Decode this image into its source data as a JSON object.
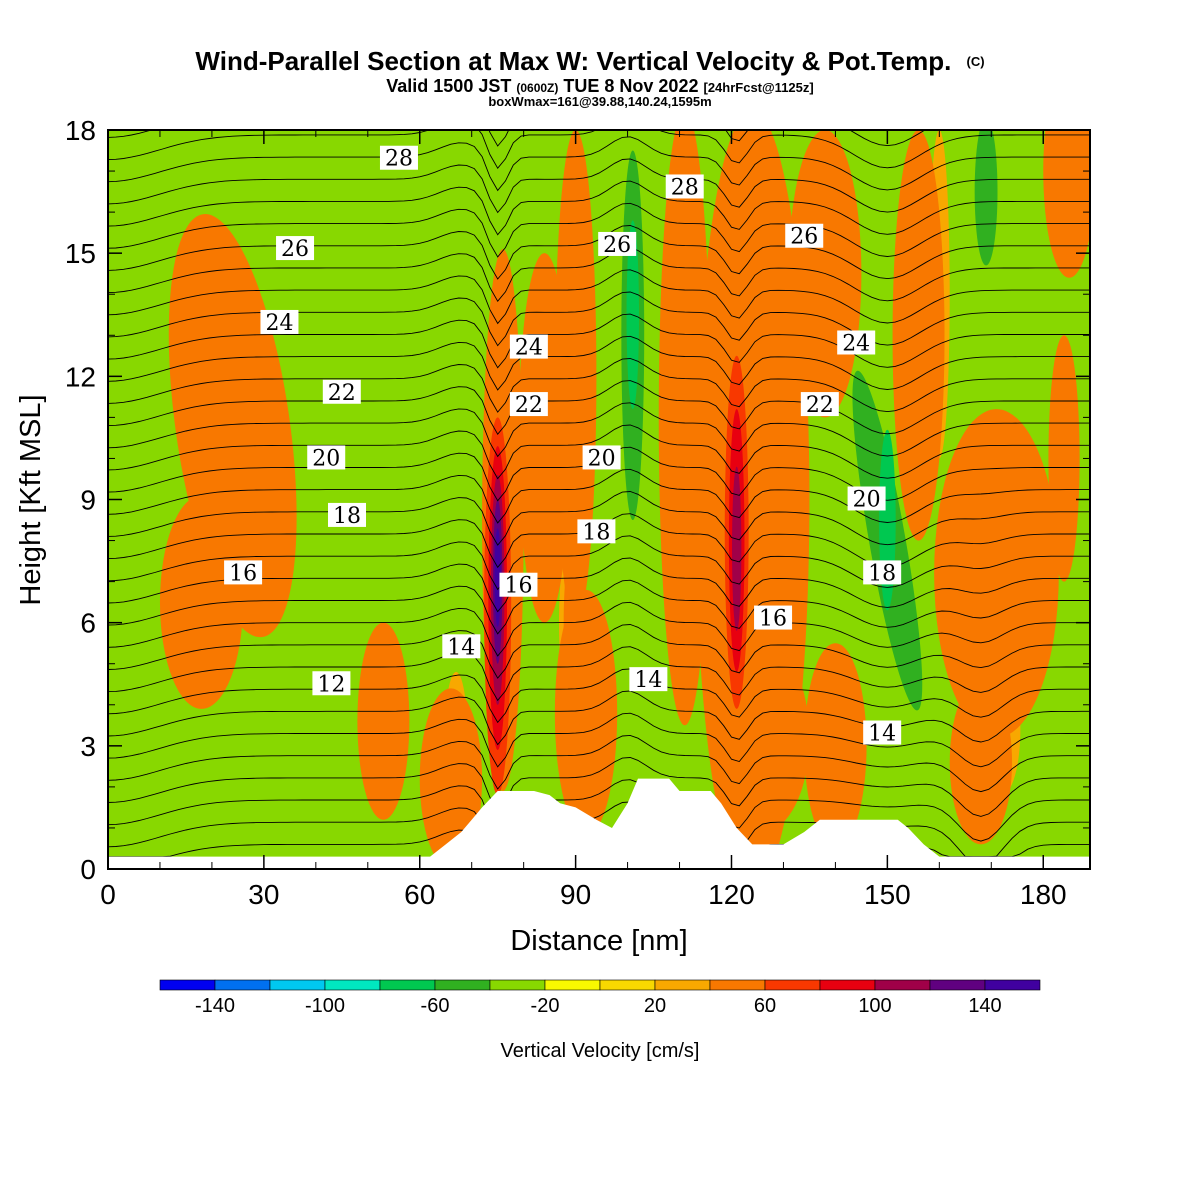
{
  "header": {
    "title_main": "Wind-Parallel Section at Max W: Vertical Velocity & Pot.Temp.",
    "title_mark": "(C)",
    "valid_prefix": "Valid 1500 JST",
    "valid_zulu": "(0600Z)",
    "valid_date": "TUE 8 Nov 2022",
    "forecast": "[24hrFcst@1125z]",
    "boxmax": "boxWmax=161@39.88,140.24,1595m"
  },
  "chart_data": {
    "type": "heatmap",
    "xlabel": "Distance [nm]",
    "ylabel": "Height [Kft MSL]",
    "xlim": [
      0,
      189
    ],
    "ylim": [
      0,
      18
    ],
    "xticks": [
      0,
      30,
      60,
      90,
      120,
      150,
      180
    ],
    "yticks": [
      0,
      3,
      6,
      9,
      12,
      15,
      18
    ],
    "xtick_labels": [
      "0",
      "30",
      "60",
      "90",
      "120",
      "150",
      "180"
    ],
    "ytick_labels": [
      "0",
      "3",
      "6",
      "9",
      "12",
      "15",
      "18"
    ],
    "colorbar": {
      "label": "Vertical Velocity [cm/s]",
      "levels": [
        -160,
        -140,
        -120,
        -100,
        -80,
        -60,
        -40,
        -20,
        0,
        20,
        40,
        60,
        80,
        100,
        120,
        140,
        160
      ],
      "tick_labels": [
        "-140",
        "-100",
        "-60",
        "-20",
        "20",
        "60",
        "100",
        "140"
      ],
      "tick_values": [
        -140,
        -100,
        -60,
        -20,
        20,
        60,
        100,
        140
      ],
      "colors": [
        "#0000f0",
        "#0070f0",
        "#00c8f0",
        "#00e8c0",
        "#00c850",
        "#30b020",
        "#88d800",
        "#f8f800",
        "#f8d800",
        "#f8a800",
        "#f87800",
        "#f83800",
        "#e80010",
        "#a00048",
        "#600080",
        "#4000a0"
      ]
    },
    "vertical_velocity_features": [
      {
        "x": 75,
        "y": 6.8,
        "peak": 150,
        "note": "updraft"
      },
      {
        "x": 121,
        "y": 8,
        "peak": 110,
        "note": "updraft"
      },
      {
        "x": 101,
        "y": 13,
        "peak": -75,
        "note": "downdraft"
      },
      {
        "x": 150,
        "y": 8,
        "peak": -55,
        "note": "downdraft"
      },
      {
        "x": 168,
        "y": 16,
        "peak": -50,
        "note": "downdraft"
      }
    ],
    "theta_contours": [
      {
        "value": 12,
        "label": "12",
        "label_x": 43,
        "label_y": 4.5
      },
      {
        "value": 14,
        "label": "14",
        "label_x": 68,
        "label_y": 5.4
      },
      {
        "value": 14,
        "label": "14",
        "label_x": 104,
        "label_y": 4.6
      },
      {
        "value": 14,
        "label": "14",
        "label_x": 149,
        "label_y": 3.3
      },
      {
        "value": 16,
        "label": "16",
        "label_x": 26,
        "label_y": 7.2
      },
      {
        "value": 16,
        "label": "16",
        "label_x": 79,
        "label_y": 6.9
      },
      {
        "value": 16,
        "label": "16",
        "label_x": 128,
        "label_y": 6.1
      },
      {
        "value": 18,
        "label": "18",
        "label_x": 46,
        "label_y": 8.6
      },
      {
        "value": 18,
        "label": "18",
        "label_x": 94,
        "label_y": 8.2
      },
      {
        "value": 18,
        "label": "18",
        "label_x": 149,
        "label_y": 7.2
      },
      {
        "value": 20,
        "label": "20",
        "label_x": 42,
        "label_y": 10.0
      },
      {
        "value": 20,
        "label": "20",
        "label_x": 95,
        "label_y": 10.0
      },
      {
        "value": 20,
        "label": "20",
        "label_x": 146,
        "label_y": 9.0
      },
      {
        "value": 22,
        "label": "22",
        "label_x": 45,
        "label_y": 11.6
      },
      {
        "value": 22,
        "label": "22",
        "label_x": 81,
        "label_y": 11.3
      },
      {
        "value": 22,
        "label": "22",
        "label_x": 137,
        "label_y": 11.3
      },
      {
        "value": 24,
        "label": "24",
        "label_x": 33,
        "label_y": 13.3
      },
      {
        "value": 24,
        "label": "24",
        "label_x": 81,
        "label_y": 12.7
      },
      {
        "value": 24,
        "label": "24",
        "label_x": 144,
        "label_y": 12.8
      },
      {
        "value": 26,
        "label": "26",
        "label_x": 36,
        "label_y": 15.1
      },
      {
        "value": 26,
        "label": "26",
        "label_x": 98,
        "label_y": 15.2
      },
      {
        "value": 26,
        "label": "26",
        "label_x": 134,
        "label_y": 15.4
      },
      {
        "value": 28,
        "label": "28",
        "label_x": 56,
        "label_y": 17.3
      },
      {
        "value": 28,
        "label": "28",
        "label_x": 111,
        "label_y": 16.6
      }
    ],
    "terrain_profile": [
      [
        0,
        0.3
      ],
      [
        60,
        0.3
      ],
      [
        62,
        0.3
      ],
      [
        65,
        0.6
      ],
      [
        68,
        0.9
      ],
      [
        70,
        1.2
      ],
      [
        72,
        1.5
      ],
      [
        75,
        1.9
      ],
      [
        82,
        1.9
      ],
      [
        85,
        1.8
      ],
      [
        87,
        1.6
      ],
      [
        90,
        1.5
      ],
      [
        94,
        1.2
      ],
      [
        97,
        1.0
      ],
      [
        100,
        1.6
      ],
      [
        102,
        2.2
      ],
      [
        108,
        2.2
      ],
      [
        110,
        1.9
      ],
      [
        116,
        1.9
      ],
      [
        118,
        1.6
      ],
      [
        121,
        1.0
      ],
      [
        124,
        0.6
      ],
      [
        130,
        0.6
      ],
      [
        134,
        0.9
      ],
      [
        137,
        1.2
      ],
      [
        152,
        1.2
      ],
      [
        154,
        1.0
      ],
      [
        157,
        0.6
      ],
      [
        160,
        0.3
      ],
      [
        189,
        0.3
      ]
    ]
  }
}
